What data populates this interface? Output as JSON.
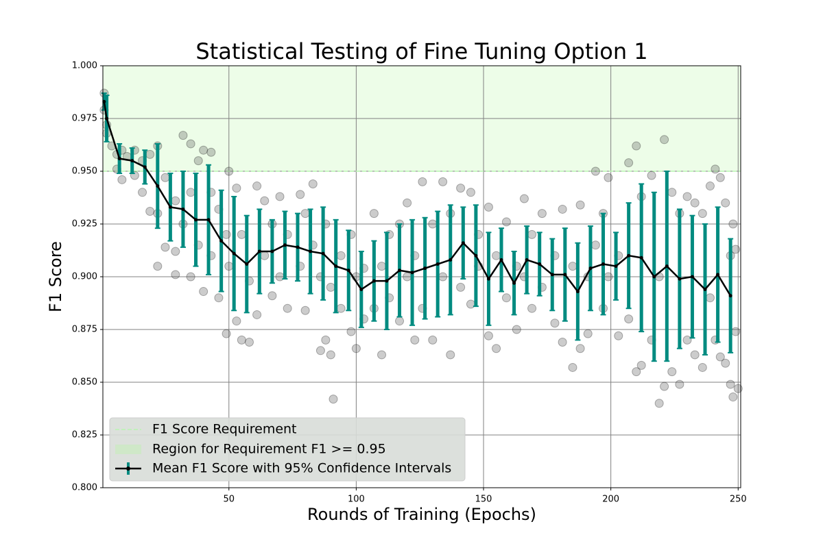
{
  "chart_data": {
    "type": "line",
    "title": "Statistical Testing of Fine Tuning Option 1",
    "x_label": "Rounds of Training (Epochs)",
    "y_label": "F1 Score",
    "xlim": [
      0.5,
      251
    ],
    "ylim": [
      0.8,
      1.0
    ],
    "xticks": [
      50,
      100,
      150,
      200,
      250
    ],
    "yticks": [
      {
        "value": 0.8,
        "label": "0.800"
      },
      0.825,
      {
        "value": 0.85,
        "label": "0.850"
      },
      0.875,
      {
        "value": 0.9,
        "label": "0.900"
      },
      0.925,
      {
        "value": 0.95,
        "label": "0.950"
      },
      0.975,
      {
        "value": 1.0,
        "label": "1.000"
      }
    ],
    "grid": true,
    "legend": "lower left",
    "threshold": {
      "name": "F1 Score Requirement",
      "value": 0.95,
      "color": "#b8f5b0"
    },
    "region": {
      "name": "Region for Requirement F1 >= 0.95",
      "range": [
        0.95,
        1.0
      ],
      "color": "#edfde8"
    },
    "x": [
      1,
      2,
      7,
      12,
      17,
      22,
      27,
      32,
      37,
      42,
      47,
      52,
      57,
      62,
      67,
      72,
      77,
      82,
      87,
      92,
      97,
      102,
      107,
      112,
      117,
      122,
      127,
      132,
      137,
      142,
      147,
      152,
      157,
      162,
      167,
      172,
      177,
      182,
      187,
      192,
      197,
      202,
      207,
      212,
      217,
      222,
      227,
      232,
      237,
      242,
      247
    ],
    "series": [
      {
        "name": "Mean F1 Score with 95% Confidence Intervals",
        "color": "#000000",
        "error_color": "#008b80",
        "values": [
          0.983,
          0.975,
          0.956,
          0.955,
          0.952,
          0.943,
          0.933,
          0.932,
          0.927,
          0.927,
          0.917,
          0.911,
          0.906,
          0.912,
          0.912,
          0.915,
          0.914,
          0.912,
          0.911,
          0.905,
          0.903,
          0.894,
          0.898,
          0.898,
          0.903,
          0.902,
          0.904,
          0.906,
          0.908,
          0.916,
          0.91,
          0.899,
          0.908,
          0.897,
          0.908,
          0.906,
          0.901,
          0.901,
          0.893,
          0.904,
          0.906,
          0.905,
          0.91,
          0.909,
          0.9,
          0.905,
          0.899,
          0.9,
          0.894,
          0.901,
          0.891
        ],
        "errors": [
          0.004,
          0.011,
          0.007,
          0.006,
          0.008,
          0.02,
          0.016,
          0.018,
          0.022,
          0.026,
          0.024,
          0.027,
          0.023,
          0.02,
          0.015,
          0.016,
          0.016,
          0.02,
          0.022,
          0.022,
          0.019,
          0.018,
          0.019,
          0.023,
          0.022,
          0.025,
          0.024,
          0.025,
          0.026,
          0.017,
          0.024,
          0.022,
          0.015,
          0.015,
          0.016,
          0.015,
          0.017,
          0.022,
          0.023,
          0.02,
          0.024,
          0.016,
          0.025,
          0.035,
          0.04,
          0.045,
          0.033,
          0.029,
          0.031,
          0.032,
          0.027
        ]
      }
    ],
    "scatter": {
      "color": "#555555",
      "x": [
        1,
        1,
        2,
        2,
        4,
        6,
        6,
        8,
        8,
        10,
        13,
        13,
        16,
        16,
        19,
        19,
        22,
        22,
        22,
        25,
        25,
        29,
        29,
        29,
        32,
        32,
        35,
        35,
        35,
        38,
        38,
        40,
        40,
        43,
        43,
        43,
        46,
        46,
        49,
        49,
        50,
        50,
        53,
        53,
        55,
        55,
        58,
        58,
        61,
        61,
        64,
        64,
        67,
        67,
        70,
        70,
        73,
        73,
        78,
        78,
        80,
        80,
        83,
        83,
        86,
        86,
        88,
        88,
        90,
        90,
        91,
        94,
        94,
        98,
        98,
        100,
        100,
        103,
        103,
        107,
        107,
        110,
        110,
        113,
        113,
        117,
        117,
        120,
        120,
        123,
        123,
        126,
        126,
        130,
        130,
        134,
        134,
        137,
        137,
        141,
        141,
        145,
        145,
        148,
        148,
        152,
        152,
        155,
        155,
        159,
        159,
        163,
        163,
        166,
        166,
        169,
        169,
        173,
        173,
        178,
        178,
        181,
        181,
        185,
        185,
        188,
        188,
        191,
        191,
        194,
        194,
        197,
        197,
        199,
        199,
        203,
        203,
        207,
        207,
        210,
        210,
        212,
        212,
        216,
        216,
        219,
        219,
        221,
        221,
        224,
        224,
        227,
        227,
        230,
        230,
        233,
        233,
        236,
        236,
        239,
        239,
        241,
        241,
        243,
        243,
        245,
        245,
        247,
        247,
        248,
        248,
        249,
        249,
        250
      ],
      "values": [
        0.987,
        0.979,
        0.972,
        0.968,
        0.962,
        0.951,
        0.958,
        0.96,
        0.946,
        0.957,
        0.948,
        0.96,
        0.94,
        0.955,
        0.931,
        0.958,
        0.962,
        0.905,
        0.93,
        0.914,
        0.947,
        0.936,
        0.912,
        0.901,
        0.967,
        0.925,
        0.963,
        0.9,
        0.94,
        0.955,
        0.915,
        0.96,
        0.893,
        0.94,
        0.91,
        0.959,
        0.89,
        0.932,
        0.873,
        0.92,
        0.95,
        0.905,
        0.879,
        0.942,
        0.87,
        0.92,
        0.869,
        0.898,
        0.943,
        0.882,
        0.936,
        0.91,
        0.925,
        0.891,
        0.938,
        0.9,
        0.885,
        0.92,
        0.939,
        0.905,
        0.884,
        0.93,
        0.944,
        0.915,
        0.865,
        0.9,
        0.87,
        0.925,
        0.863,
        0.895,
        0.842,
        0.91,
        0.885,
        0.874,
        0.92,
        0.866,
        0.9,
        0.904,
        0.88,
        0.93,
        0.885,
        0.863,
        0.905,
        0.92,
        0.89,
        0.925,
        0.879,
        0.935,
        0.9,
        0.87,
        0.91,
        0.945,
        0.885,
        0.87,
        0.925,
        0.945,
        0.9,
        0.863,
        0.93,
        0.942,
        0.895,
        0.887,
        0.94,
        0.92,
        0.905,
        0.933,
        0.872,
        0.866,
        0.91,
        0.926,
        0.89,
        0.875,
        0.905,
        0.937,
        0.9,
        0.885,
        0.92,
        0.93,
        0.895,
        0.878,
        0.91,
        0.932,
        0.869,
        0.857,
        0.905,
        0.866,
        0.934,
        0.873,
        0.9,
        0.95,
        0.915,
        0.885,
        0.93,
        0.947,
        0.9,
        0.872,
        0.91,
        0.954,
        0.88,
        0.962,
        0.855,
        0.938,
        0.858,
        0.948,
        0.87,
        0.84,
        0.9,
        0.965,
        0.848,
        0.94,
        0.855,
        0.93,
        0.849,
        0.938,
        0.87,
        0.935,
        0.863,
        0.93,
        0.857,
        0.943,
        0.89,
        0.951,
        0.87,
        0.947,
        0.862,
        0.935,
        0.859,
        0.849,
        0.91,
        0.843,
        0.925,
        0.874,
        0.913,
        0.847
      ]
    }
  }
}
